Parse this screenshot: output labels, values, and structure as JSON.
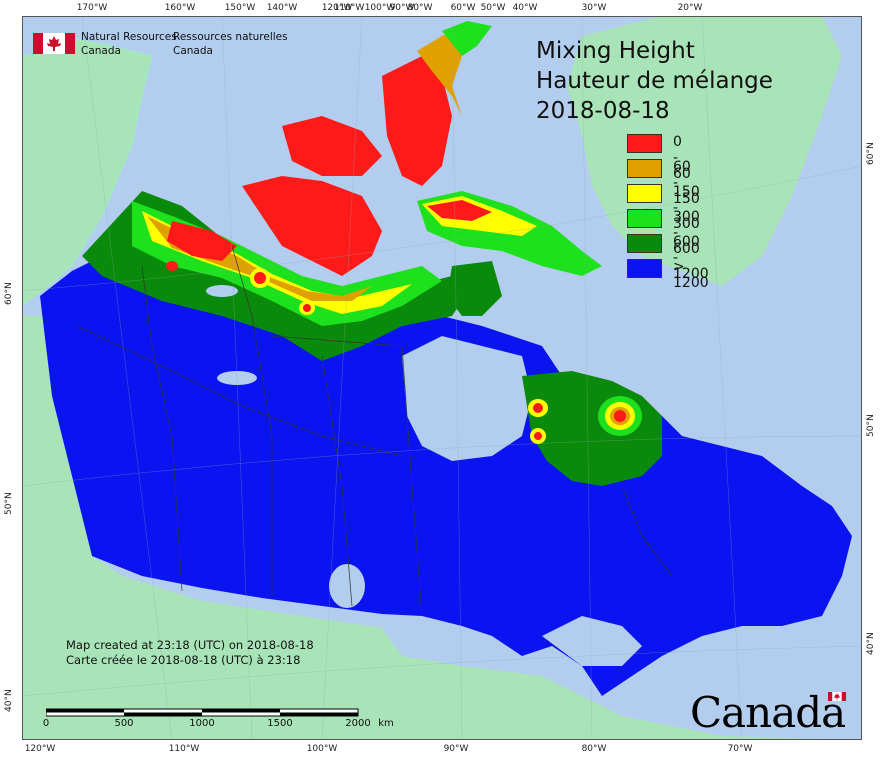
{
  "map": {
    "title_en": "Mixing Height",
    "title_fr": "Hauteur de mélange",
    "date": "2018-08-18",
    "legend": [
      {
        "label": "0 - 60",
        "color": "#ff1a1a"
      },
      {
        "label": "60 - 150",
        "color": "#e0a000"
      },
      {
        "label": "150 - 300",
        "color": "#ffff00"
      },
      {
        "label": "300 - 600",
        "color": "#1ee11e"
      },
      {
        "label": "600 - 1200",
        "color": "#0a8a0a"
      },
      {
        "label": "> 1200",
        "color": "#0a14f0"
      }
    ],
    "colors": {
      "ocean": "#b3cdef",
      "foreign_land": "#a8e4b8",
      "border": "#333333"
    }
  },
  "agency": {
    "name_en_line1": "Natural Resources",
    "name_en_line2": "Canada",
    "name_fr_line1": "Ressources naturelles",
    "name_fr_line2": "Canada"
  },
  "creation": {
    "line_en": "Map created at 23:18 (UTC) on 2018-08-18",
    "line_fr": "Carte créée le 2018-08-18 (UTC) à 23:18"
  },
  "scale": {
    "labels": [
      "0",
      "500",
      "1000",
      "1500",
      "2000"
    ],
    "unit": "km"
  },
  "wordmark": "Canada",
  "graticule": {
    "top": [
      "170°W",
      "160°W",
      "150°W",
      "140°W",
      "120°W",
      "110°W",
      "100°W",
      "90°W",
      "80°W",
      "60°W",
      "50°W",
      "40°W",
      "30°W",
      "20°W"
    ],
    "bottom": [
      "120°W",
      "110°W",
      "100°W",
      "90°W",
      "80°W",
      "70°W"
    ],
    "left": [
      "60°N",
      "50°N",
      "40°N"
    ],
    "right": [
      "60°N",
      "50°N",
      "40°N"
    ]
  }
}
